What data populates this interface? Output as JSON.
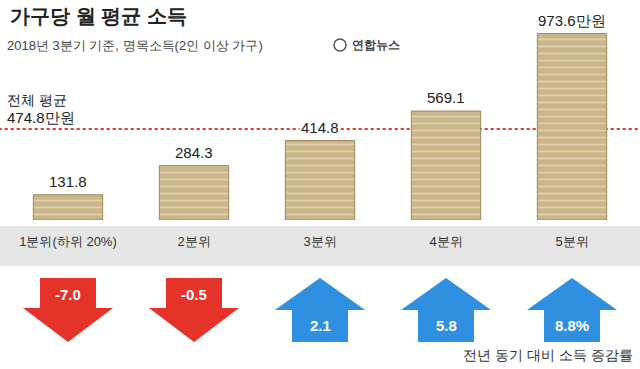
{
  "chart_data": {
    "type": "bar",
    "title": "가구당 월 평균 소득",
    "subtitle": "2018년 3분기 기준, 명목소득(2인 이상 가구)",
    "source": "연합뉴스",
    "categories": [
      "1분위(하위 20%)",
      "2분위",
      "3분위",
      "4분위",
      "5분위"
    ],
    "values": [
      131.8,
      284.3,
      414.8,
      569.1,
      973.6
    ],
    "value_labels": [
      "131.8",
      "284.3",
      "414.8",
      "569.1",
      "973.6만원"
    ],
    "data_labels": true,
    "color": "#cbb68a",
    "tick_labels": "x",
    "grid": false,
    "reference_line": {
      "label": "전체 평균",
      "value": 474.8,
      "value_label": "474.8만원",
      "color": "#e8332a",
      "line_style": "dotted"
    },
    "change": {
      "title": "전년 동기 대비 소득 증감률",
      "values": [
        -7.0,
        -0.5,
        2.1,
        5.8,
        8.8
      ],
      "value_labels": [
        "-7.0",
        "-0.5",
        "2.1",
        "5.8",
        "8.8%"
      ],
      "colors": [
        "#e5332a",
        "#e5332a",
        "#2f8fe0",
        "#2f8fe0",
        "#2f8fe0"
      ]
    }
  }
}
